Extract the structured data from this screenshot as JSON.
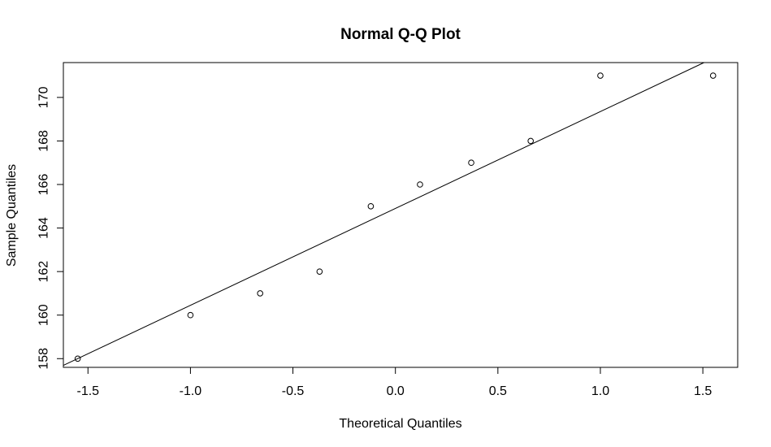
{
  "chart_data": {
    "type": "scatter",
    "title": "Normal Q-Q Plot",
    "xlabel": "Theoretical Quantiles",
    "ylabel": "Sample Quantiles",
    "xlim": [
      -1.62,
      1.67
    ],
    "ylim": [
      157.6,
      171.6
    ],
    "x_ticks": [
      -1.5,
      -1.0,
      -0.5,
      0.0,
      0.5,
      1.0,
      1.5
    ],
    "x_tick_labels": [
      "-1.5",
      "-1.0",
      "-0.5",
      "0.0",
      "0.5",
      "1.0",
      "1.5"
    ],
    "y_ticks": [
      158,
      160,
      162,
      164,
      166,
      168,
      170
    ],
    "y_tick_labels": [
      "158",
      "160",
      "162",
      "164",
      "166",
      "168",
      "170"
    ],
    "points": [
      {
        "x": -1.55,
        "y": 158
      },
      {
        "x": -1.0,
        "y": 160
      },
      {
        "x": -0.66,
        "y": 161
      },
      {
        "x": -0.37,
        "y": 162
      },
      {
        "x": -0.12,
        "y": 165
      },
      {
        "x": 0.12,
        "y": 166
      },
      {
        "x": 0.37,
        "y": 167
      },
      {
        "x": 0.66,
        "y": 168
      },
      {
        "x": 1.0,
        "y": 171
      },
      {
        "x": 1.55,
        "y": 171
      }
    ],
    "reference_line": {
      "intercept": 164.9,
      "slope": 4.45
    },
    "grid": false,
    "marker": "open-circle",
    "color": "#000000"
  }
}
